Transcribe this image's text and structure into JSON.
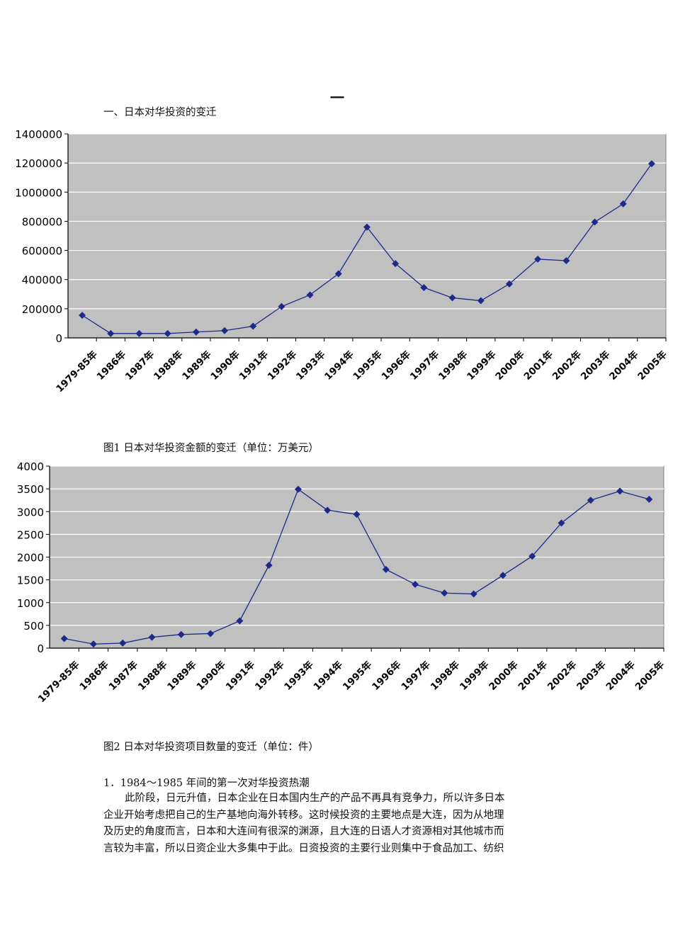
{
  "page_mark": "一",
  "section_heading": "一、日本对华投资的变迁",
  "chart_data": [
    {
      "type": "line",
      "categories": [
        "1979-85年",
        "1986年",
        "1987年",
        "1988年",
        "1989年",
        "1990年",
        "1991年",
        "1992年",
        "1993年",
        "1994年",
        "1995年",
        "1996年",
        "1997年",
        "1998年",
        "1999年",
        "2000年",
        "2001年",
        "2002年",
        "2003年",
        "2004年",
        "2005年"
      ],
      "series": [
        {
          "values": [
            155000,
            30000,
            30000,
            30000,
            40000,
            50000,
            80000,
            215000,
            295000,
            440000,
            760000,
            510000,
            345000,
            275000,
            255000,
            370000,
            540000,
            530000,
            795000,
            920000,
            1195000
          ]
        }
      ],
      "ylim": [
        0,
        1400000
      ],
      "yticks": [
        "0",
        "200000",
        "400000",
        "600000",
        "800000",
        "1000000",
        "1200000",
        "1400000"
      ],
      "grid": true,
      "line_color": "#1c2a8a",
      "plot_bg": "#c0c0c0",
      "caption": "图1  日本对华投资金额的变迁（单位：万美元）"
    },
    {
      "type": "line",
      "categories": [
        "1979-85年",
        "1986年",
        "1987年",
        "1988年",
        "1989年",
        "1990年",
        "1991年",
        "1992年",
        "1993年",
        "1994年",
        "1995年",
        "1996年",
        "1997年",
        "1998年",
        "1999年",
        "2000年",
        "2001年",
        "2002年",
        "2003年",
        "2004年",
        "2005年"
      ],
      "series": [
        {
          "values": [
            210,
            90,
            110,
            240,
            300,
            320,
            600,
            1820,
            3490,
            3030,
            2940,
            1730,
            1400,
            1210,
            1190,
            1600,
            2020,
            2750,
            3250,
            3450,
            3270
          ]
        }
      ],
      "ylim": [
        0,
        4000
      ],
      "yticks": [
        "0",
        "500",
        "1000",
        "1500",
        "2000",
        "2500",
        "3000",
        "3500",
        "4000"
      ],
      "grid": true,
      "line_color": "#1c2a8a",
      "plot_bg": "#c0c0c0",
      "caption": "图2  日本对华投资项目数量的变迁（单位：件）"
    }
  ],
  "para_heading": "1．1984～1985 年间的第一次对华投资热潮",
  "para_lines": [
    "此阶段，日元升值，日本企业在日本国内生产的产品不再具有竞争力，所以许多日本",
    "企业开始考虑把自己的生产基地向海外转移。这时候投资的主要地点是大连，因为从地理",
    "及历史的角度而言，日本和大连间有很深的渊源，且大连的日语人才资源相对其他城市而",
    "言较为丰富，所以日资企业大多集中于此。日资投资的主要行业则集中于食品加工、纺织"
  ]
}
